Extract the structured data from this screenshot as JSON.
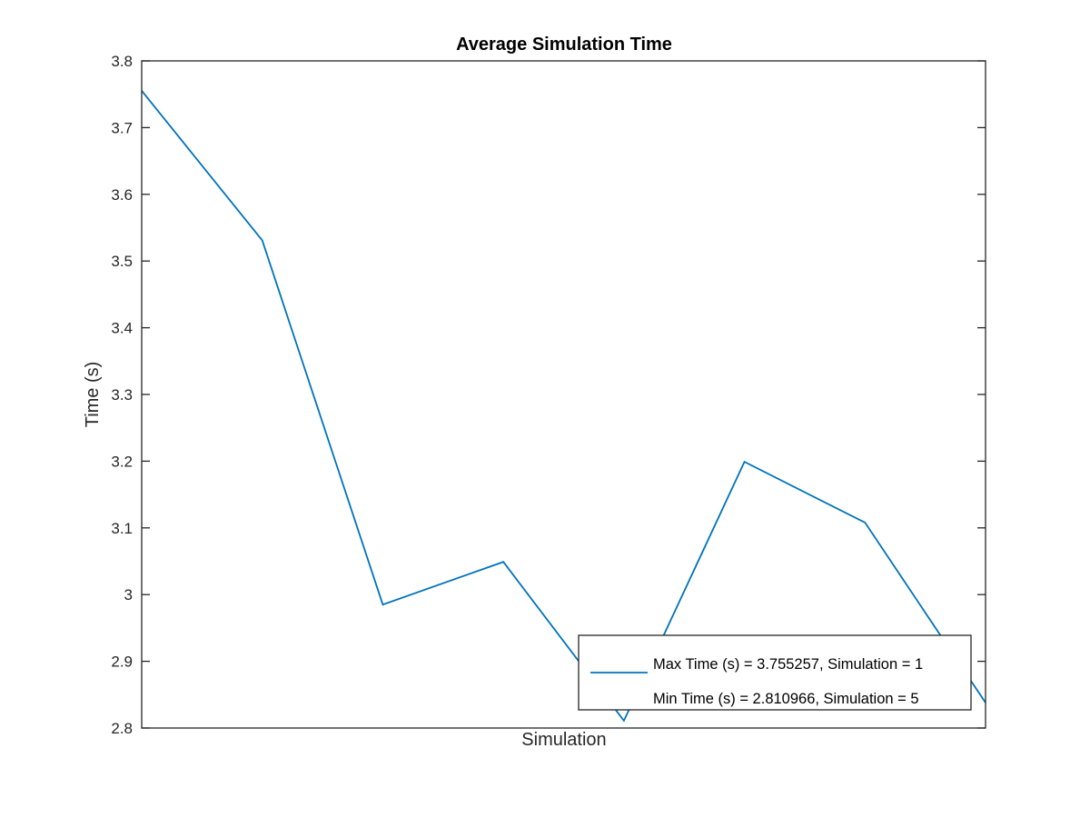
{
  "chart_data": {
    "type": "line",
    "title": "Average Simulation Time",
    "xlabel": "Simulation",
    "ylabel": "Time (s)",
    "x": [
      1,
      2,
      3,
      4,
      5,
      6,
      7,
      8
    ],
    "series": [
      {
        "values": [
          3.755257,
          3.531,
          2.985,
          3.049,
          2.810966,
          3.199,
          3.108,
          2.838
        ]
      }
    ],
    "xlim": [
      1,
      8
    ],
    "ylim": [
      2.8,
      3.8
    ],
    "yticks": [
      "2.8",
      "2.9",
      "3",
      "3.1",
      "3.2",
      "3.3",
      "3.4",
      "3.5",
      "3.6",
      "3.7",
      "3.8"
    ],
    "ytick_values": [
      2.8,
      2.9,
      3.0,
      3.1,
      3.2,
      3.3,
      3.4,
      3.5,
      3.6,
      3.7,
      3.8
    ],
    "grid": false,
    "legend": {
      "placement": "bottom-right",
      "entries": [
        "Max Time (s) = 3.755257, Simulation = 1",
        "Min Time (s) = 2.810966, Simulation = 5"
      ]
    },
    "colors": {
      "line": "#0072bd",
      "axes": "#262626"
    }
  }
}
